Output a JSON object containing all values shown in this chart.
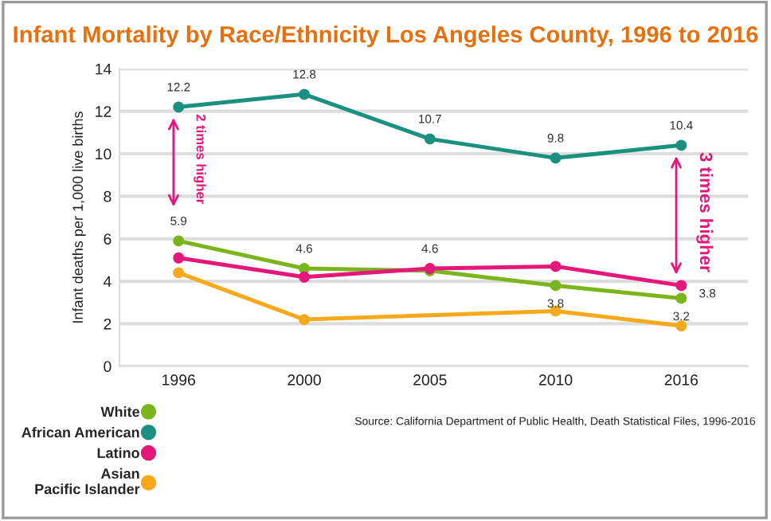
{
  "chart_data": {
    "type": "line",
    "title": "Infant Mortality by Race/Ethnicity Los Angeles County, 1996 to 2016",
    "ylabel": "Infant deaths per 1,000 live births",
    "categories": [
      "1996",
      "2000",
      "2005",
      "2010",
      "2016"
    ],
    "series": [
      {
        "name": "White",
        "color": "#7ab51d",
        "values": [
          5.9,
          4.6,
          4.5,
          3.8,
          3.2
        ],
        "value_labels": [
          "5.9",
          "4.6",
          null,
          "3.8",
          "3.2"
        ]
      },
      {
        "name": "African American",
        "color": "#1a9080",
        "values": [
          12.2,
          12.8,
          10.7,
          9.8,
          10.4
        ],
        "value_labels": [
          "12.2",
          "12.8",
          "10.7",
          "9.8",
          "10.4"
        ]
      },
      {
        "name": "Latino",
        "color": "#e6177a",
        "values": [
          5.1,
          4.2,
          4.6,
          4.7,
          3.8
        ],
        "value_labels": [
          null,
          null,
          "4.6",
          null,
          "3.8"
        ]
      },
      {
        "name": "Asian\nPacific Islander",
        "color": "#f7a81b",
        "values": [
          4.4,
          2.2,
          null,
          2.6,
          1.9
        ]
      }
    ],
    "ylim": [
      0,
      14
    ],
    "yticks": [
      0,
      2,
      4,
      6,
      8,
      10,
      12,
      14
    ],
    "grid": "y",
    "marker": "circle",
    "line_style": "solid",
    "legend": "bottom left",
    "annotations": [
      "2 times higher",
      "3 times higher",
      "Source: California Department of Public Health, Death Statistical Files, 1996-2016"
    ]
  }
}
